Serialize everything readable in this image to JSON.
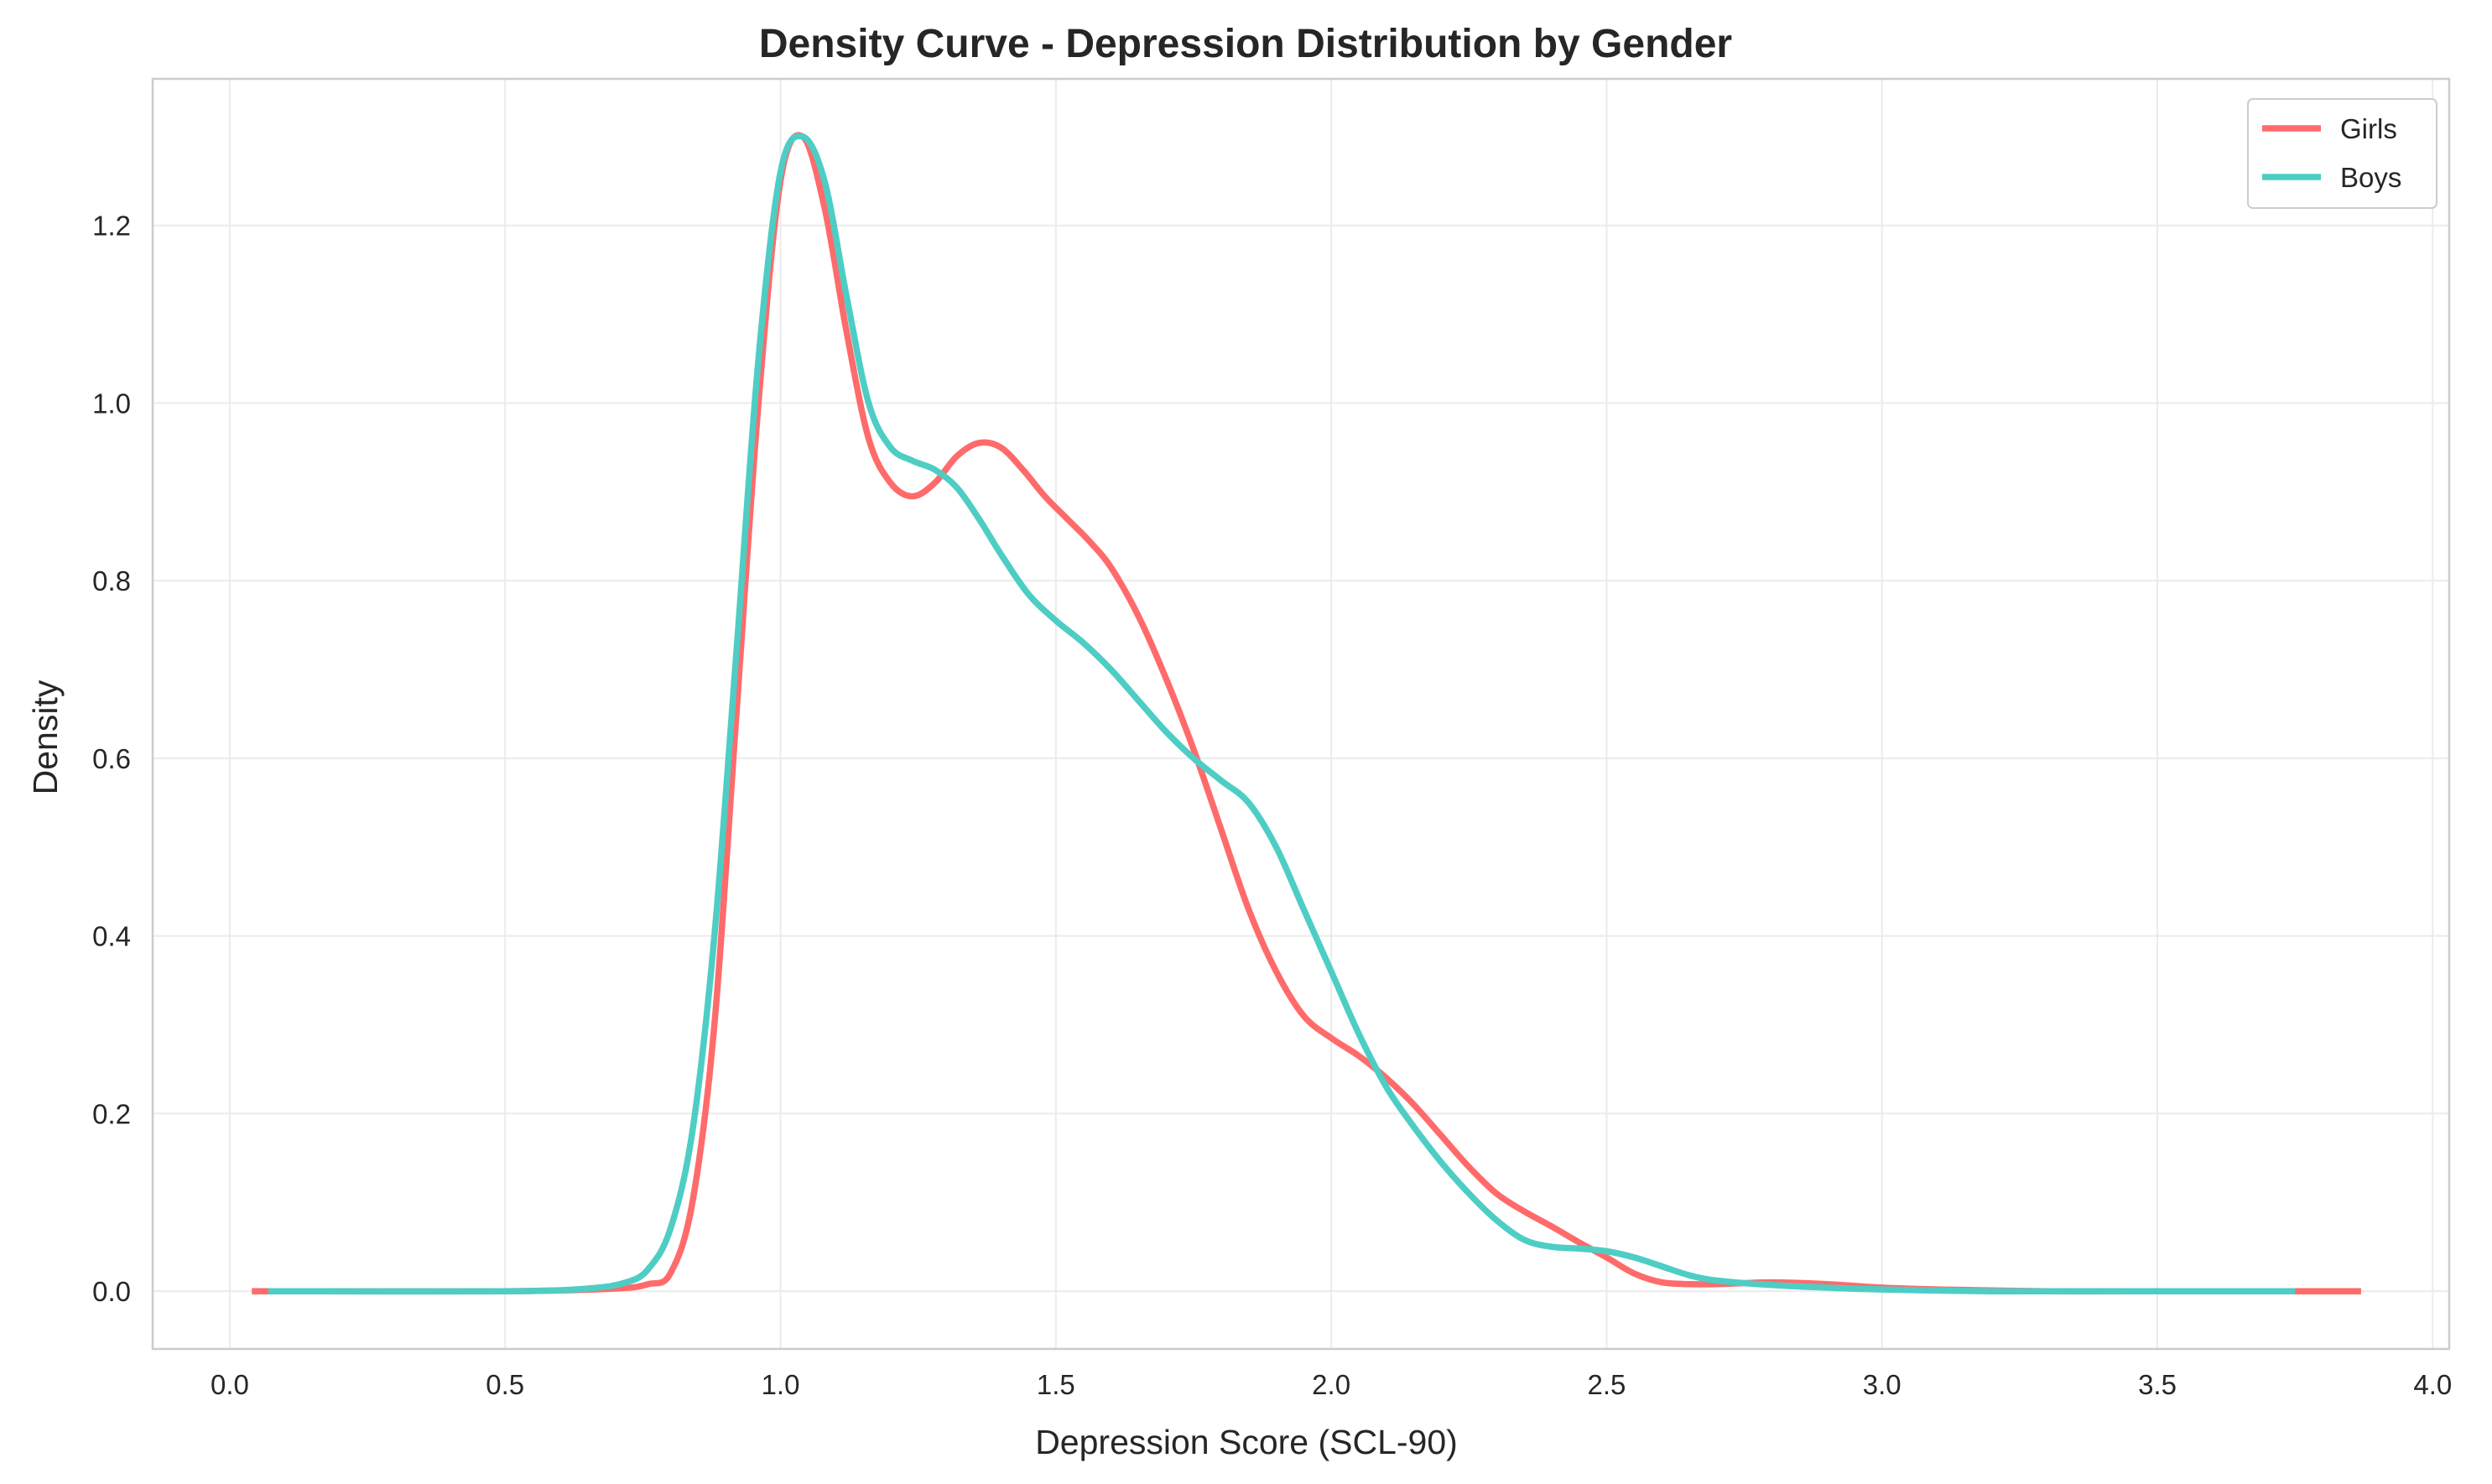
{
  "chart_data": {
    "type": "line",
    "title": "Density Curve - Depression Distribution by Gender",
    "xlabel": "Depression Score (SCL-90)",
    "ylabel": "Density",
    "xlim": [
      -0.14,
      4.03
    ],
    "ylim": [
      -0.065,
      1.365
    ],
    "x_ticks": [
      0.0,
      0.5,
      1.0,
      1.5,
      2.0,
      2.5,
      3.0,
      3.5,
      4.0
    ],
    "x_tick_labels": [
      "0.0",
      "0.5",
      "1.0",
      "1.5",
      "2.0",
      "2.5",
      "3.0",
      "3.5",
      "4.0"
    ],
    "y_ticks": [
      0.0,
      0.2,
      0.4,
      0.6,
      0.8,
      1.0,
      1.2
    ],
    "y_tick_labels": [
      "0.0",
      "0.2",
      "0.4",
      "0.6",
      "0.8",
      "1.0",
      "1.2"
    ],
    "grid": true,
    "legend_position": "top-right",
    "series": [
      {
        "name": "Girls",
        "color": "#ff6b6b",
        "x": [
          0.04,
          0.5,
          0.7,
          0.76,
          0.8,
          0.84,
          0.88,
          0.92,
          0.96,
          1.0,
          1.04,
          1.08,
          1.12,
          1.16,
          1.2,
          1.24,
          1.28,
          1.32,
          1.36,
          1.4,
          1.44,
          1.48,
          1.52,
          1.56,
          1.6,
          1.65,
          1.7,
          1.75,
          1.8,
          1.85,
          1.9,
          1.95,
          2.0,
          2.05,
          2.1,
          2.15,
          2.2,
          2.25,
          2.3,
          2.35,
          2.4,
          2.45,
          2.5,
          2.55,
          2.6,
          2.65,
          2.7,
          2.8,
          2.9,
          3.0,
          3.1,
          3.3,
          3.5,
          3.87
        ],
        "y": [
          0.0,
          0.0,
          0.003,
          0.008,
          0.02,
          0.1,
          0.3,
          0.65,
          1.0,
          1.25,
          1.3,
          1.22,
          1.08,
          0.96,
          0.91,
          0.895,
          0.91,
          0.94,
          0.955,
          0.95,
          0.925,
          0.895,
          0.87,
          0.845,
          0.815,
          0.76,
          0.69,
          0.61,
          0.52,
          0.43,
          0.36,
          0.31,
          0.285,
          0.265,
          0.24,
          0.21,
          0.175,
          0.14,
          0.11,
          0.09,
          0.073,
          0.055,
          0.038,
          0.02,
          0.01,
          0.008,
          0.008,
          0.01,
          0.008,
          0.004,
          0.002,
          0.0,
          0.0,
          0.0
        ]
      },
      {
        "name": "Boys",
        "color": "#4ecdc4",
        "x": [
          0.07,
          0.5,
          0.65,
          0.72,
          0.76,
          0.8,
          0.84,
          0.88,
          0.92,
          0.96,
          1.0,
          1.04,
          1.08,
          1.12,
          1.16,
          1.2,
          1.24,
          1.28,
          1.32,
          1.36,
          1.4,
          1.45,
          1.5,
          1.55,
          1.6,
          1.65,
          1.7,
          1.75,
          1.8,
          1.85,
          1.9,
          1.95,
          2.0,
          2.05,
          2.1,
          2.15,
          2.2,
          2.25,
          2.3,
          2.35,
          2.4,
          2.45,
          2.5,
          2.55,
          2.6,
          2.65,
          2.7,
          2.8,
          2.9,
          3.0,
          3.2,
          3.5,
          3.75
        ],
        "y": [
          0.0,
          0.0,
          0.003,
          0.01,
          0.025,
          0.07,
          0.18,
          0.4,
          0.72,
          1.05,
          1.26,
          1.3,
          1.25,
          1.12,
          1.0,
          0.95,
          0.935,
          0.925,
          0.905,
          0.87,
          0.83,
          0.785,
          0.755,
          0.73,
          0.7,
          0.665,
          0.63,
          0.6,
          0.575,
          0.55,
          0.5,
          0.43,
          0.36,
          0.29,
          0.23,
          0.185,
          0.145,
          0.11,
          0.08,
          0.058,
          0.05,
          0.048,
          0.045,
          0.038,
          0.028,
          0.018,
          0.012,
          0.007,
          0.004,
          0.002,
          0.0,
          0.0,
          0.0
        ]
      }
    ]
  }
}
